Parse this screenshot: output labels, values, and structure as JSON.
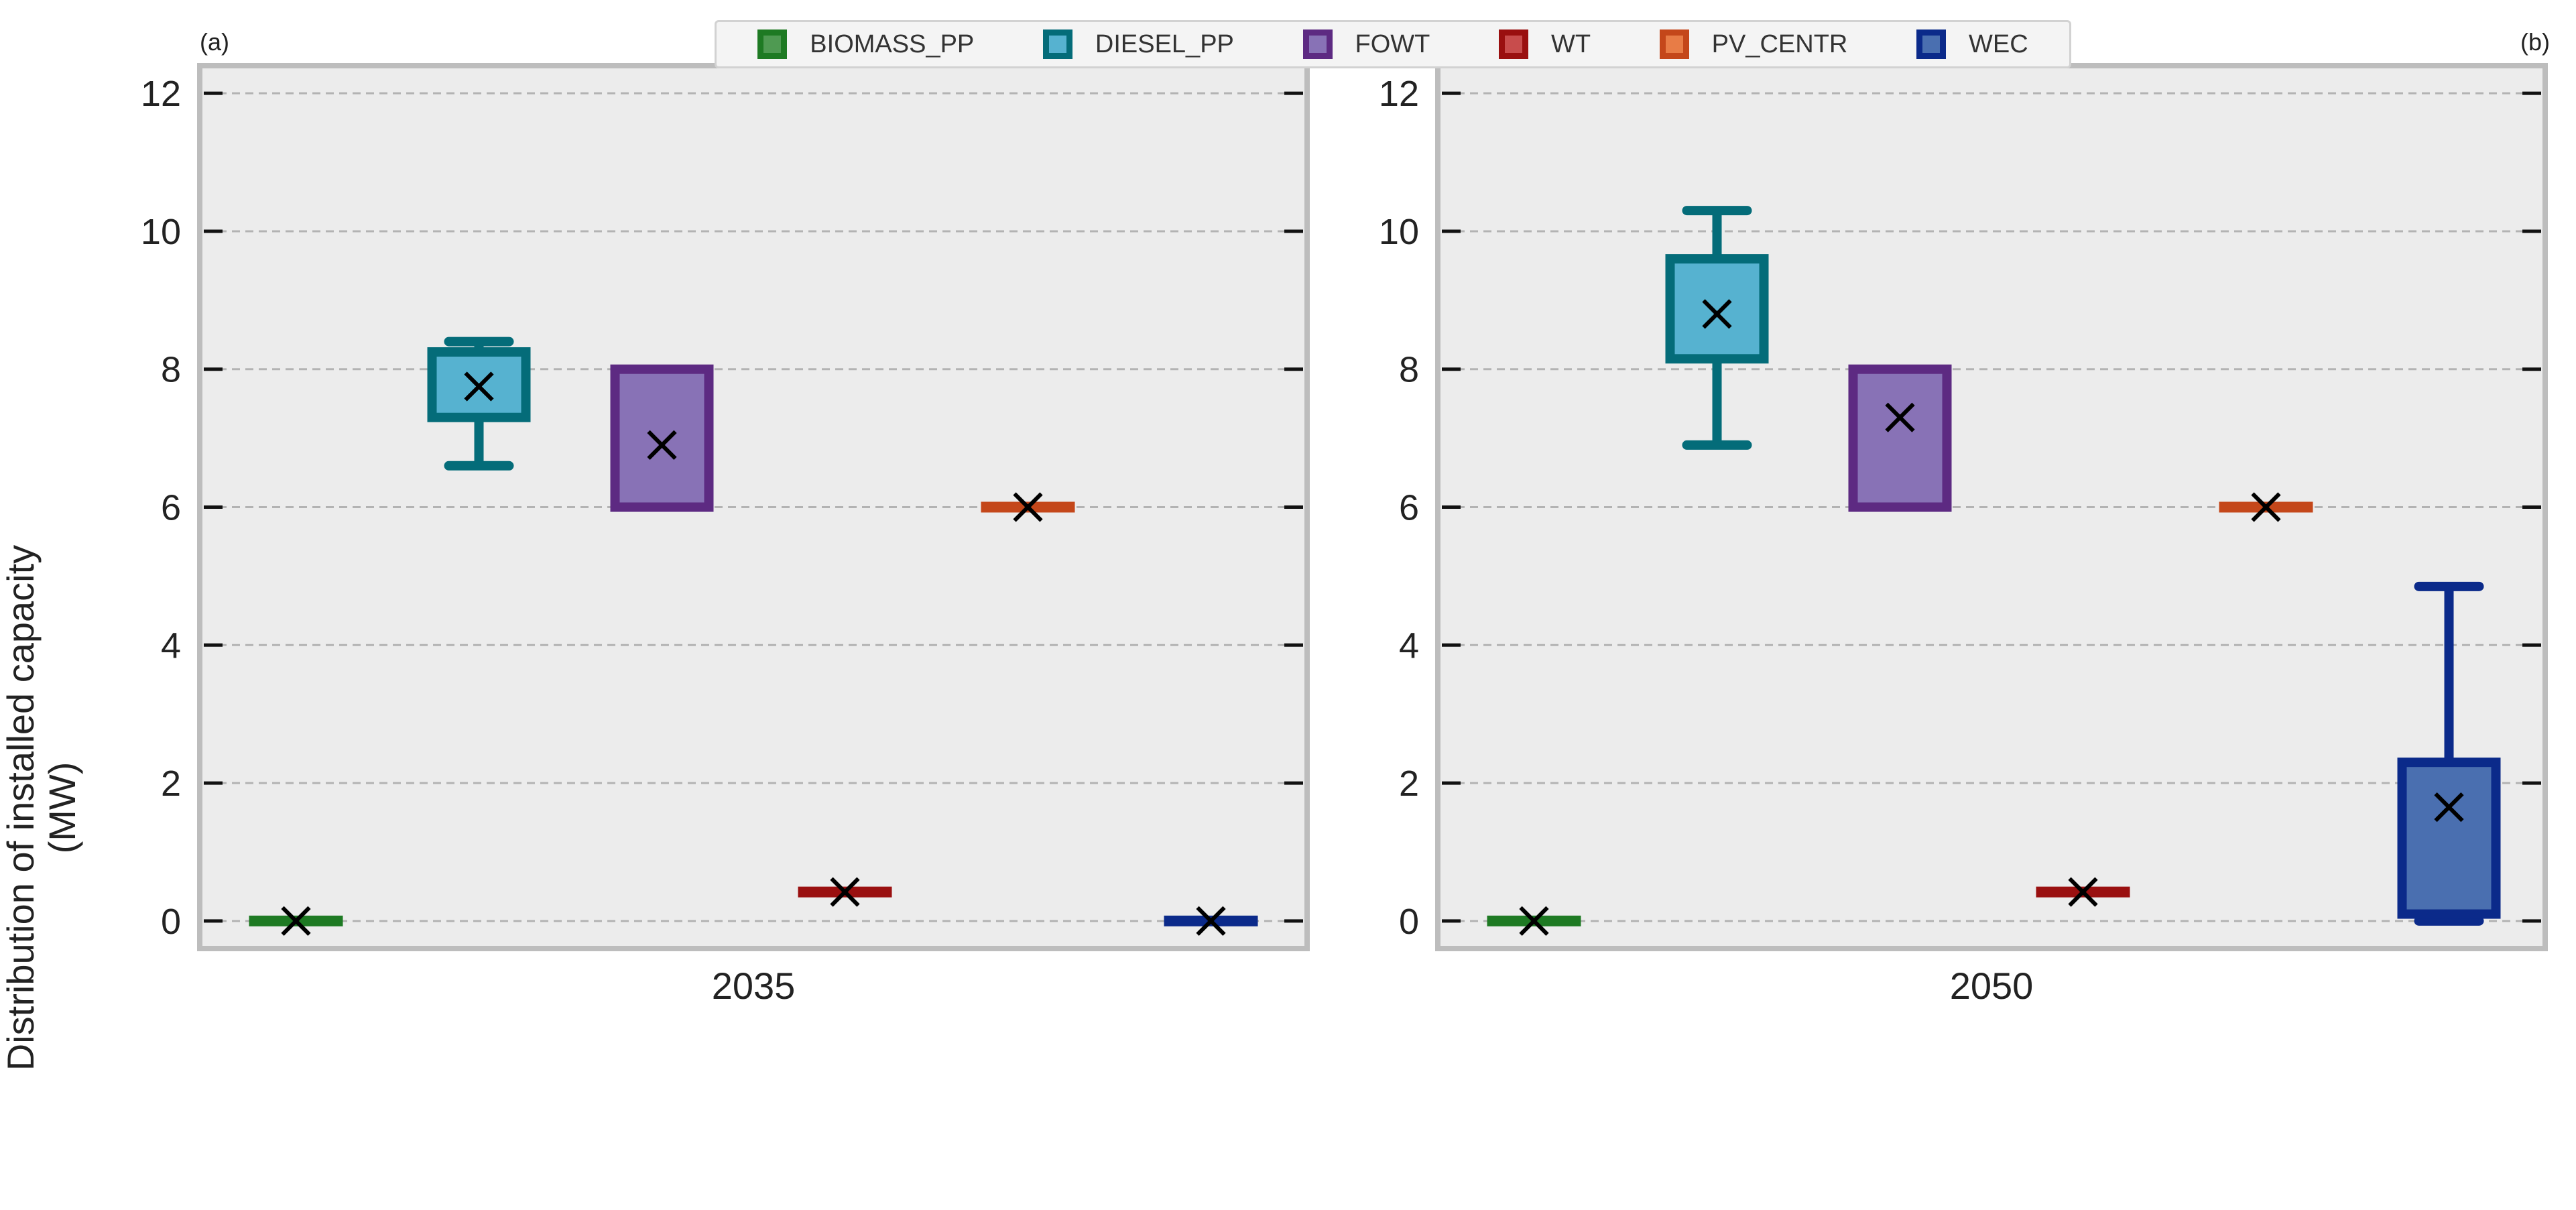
{
  "legend": [
    {
      "label": "BIOMASS_PP",
      "edge": "#1e7a23",
      "fill": "#4f9a52"
    },
    {
      "label": "DIESEL_PP",
      "edge": "#046c79",
      "fill": "#56b2d0"
    },
    {
      "label": "FOWT",
      "edge": "#5d2a82",
      "fill": "#8872b6"
    },
    {
      "label": "WT",
      "edge": "#9a1010",
      "fill": "#c84c4c"
    },
    {
      "label": "PV_CENTR",
      "edge": "#c4471a",
      "fill": "#e87c46"
    },
    {
      "label": "WEC",
      "edge": "#0b2a8a",
      "fill": "#4a6fb0"
    }
  ],
  "panels": [
    {
      "tag": "(a)",
      "year": "2035"
    },
    {
      "tag": "(b)",
      "year": "2050"
    }
  ],
  "ylabel_line1": "Distribution of installed capacity",
  "ylabel_line2": "(MW)",
  "chart_data": [
    {
      "type": "box",
      "xlabel": "2035",
      "ylabel": "Distribution of installed capacity (MW)",
      "ylim": [
        -0.4,
        12.4
      ],
      "yticks": [
        "0",
        "2",
        "4",
        "6",
        "8",
        "10",
        "12"
      ],
      "grid": "horizontal dashed",
      "series": [
        {
          "name": "BIOMASS_PP",
          "whisker_low": 0,
          "q1": 0,
          "median": 0,
          "q3": 0,
          "whisker_high": 0,
          "mean": 0
        },
        {
          "name": "DIESEL_PP",
          "whisker_low": 6.6,
          "q1": 7.3,
          "median": 7.3,
          "q3": 8.25,
          "whisker_high": 8.4,
          "mean": 7.75
        },
        {
          "name": "FOWT",
          "whisker_low": 6.0,
          "q1": 6.0,
          "median": 6.0,
          "q3": 8.0,
          "whisker_high": 8.0,
          "mean": 6.9
        },
        {
          "name": "WT",
          "whisker_low": 0.42,
          "q1": 0.42,
          "median": 0.42,
          "q3": 0.42,
          "whisker_high": 0.42,
          "mean": 0.42
        },
        {
          "name": "PV_CENTR",
          "whisker_low": 6.0,
          "q1": 6.0,
          "median": 6.0,
          "q3": 6.0,
          "whisker_high": 6.0,
          "mean": 6.0
        },
        {
          "name": "WEC",
          "whisker_low": 0,
          "q1": 0,
          "median": 0,
          "q3": 0,
          "whisker_high": 0,
          "mean": 0
        }
      ]
    },
    {
      "type": "box",
      "xlabel": "2050",
      "ylim": [
        -0.4,
        12.4
      ],
      "yticks": [
        "0",
        "2",
        "4",
        "6",
        "8",
        "10",
        "12"
      ],
      "grid": "horizontal dashed",
      "series": [
        {
          "name": "BIOMASS_PP",
          "whisker_low": 0,
          "q1": 0,
          "median": 0,
          "q3": 0,
          "whisker_high": 0,
          "mean": 0
        },
        {
          "name": "DIESEL_PP",
          "whisker_low": 6.9,
          "q1": 8.15,
          "median": 8.15,
          "q3": 9.6,
          "whisker_high": 10.3,
          "mean": 8.8
        },
        {
          "name": "FOWT",
          "whisker_low": 6.0,
          "q1": 6.0,
          "median": 6.0,
          "q3": 8.0,
          "whisker_high": 8.0,
          "mean": 7.3
        },
        {
          "name": "WT",
          "whisker_low": 0.42,
          "q1": 0.42,
          "median": 0.42,
          "q3": 0.42,
          "whisker_high": 0.42,
          "mean": 0.42
        },
        {
          "name": "PV_CENTR",
          "whisker_low": 6.0,
          "q1": 6.0,
          "median": 6.0,
          "q3": 6.0,
          "whisker_high": 6.0,
          "mean": 6.0
        },
        {
          "name": "WEC",
          "whisker_low": 0,
          "q1": 0.1,
          "median": 0.1,
          "q3": 2.3,
          "whisker_high": 4.85,
          "mean": 1.65
        }
      ]
    }
  ]
}
